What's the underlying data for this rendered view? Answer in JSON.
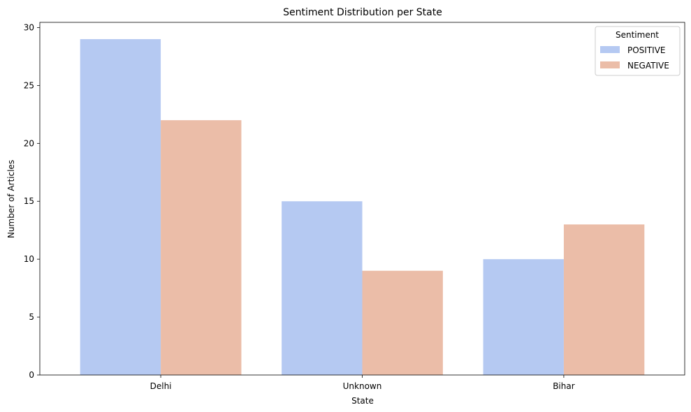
{
  "chart_data": {
    "type": "bar",
    "title": "Sentiment Distribution per State",
    "xlabel": "State",
    "ylabel": "Number of Articles",
    "categories": [
      "Delhi",
      "Unknown",
      "Bihar"
    ],
    "series": [
      {
        "name": "POSITIVE",
        "values": [
          29,
          15,
          10
        ],
        "color": "#b5c9f2"
      },
      {
        "name": "NEGATIVE",
        "values": [
          22,
          9,
          13
        ],
        "color": "#ebbda8"
      }
    ],
    "ylim": [
      0,
      30.45
    ],
    "yticks": [
      0,
      5,
      10,
      15,
      20,
      25,
      30
    ],
    "grid": false,
    "legend": {
      "title": "Sentiment",
      "placement": "top-right"
    }
  }
}
